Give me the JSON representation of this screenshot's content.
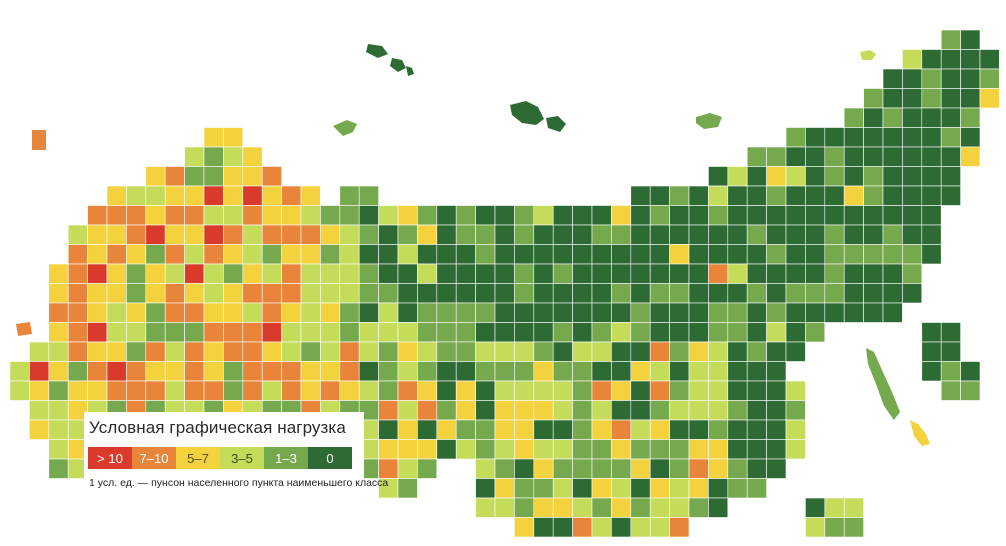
{
  "legend": {
    "title": "Условная графическая нагрузка",
    "note": "1 усл. ед. — пунсон населенного пункта наименьшего класса",
    "classes": [
      {
        "label": "> 10",
        "color": "#d93a2b",
        "text_color": "#ffffff"
      },
      {
        "label": "7–10",
        "color": "#e8853a",
        "text_color": "#ffffff"
      },
      {
        "label": "5–7",
        "color": "#f4d23e",
        "text_color": "#5a4a00"
      },
      {
        "label": "3–5",
        "color": "#c4dc5a",
        "text_color": "#3b4a10"
      },
      {
        "label": "1–3",
        "color": "#76a94e",
        "text_color": "#ffffff"
      },
      {
        "label": "0",
        "color": "#2e6b34",
        "text_color": "#ffffff"
      }
    ]
  },
  "colors": {
    "c0": "#d93a2b",
    "c1": "#e8853a",
    "c2": "#f4d23e",
    "c3": "#c4dc5a",
    "c4": "#76a94e",
    "c5": "#2e6b34",
    "grid_line": "#ffffff",
    "water": "#ffffff"
  }
}
